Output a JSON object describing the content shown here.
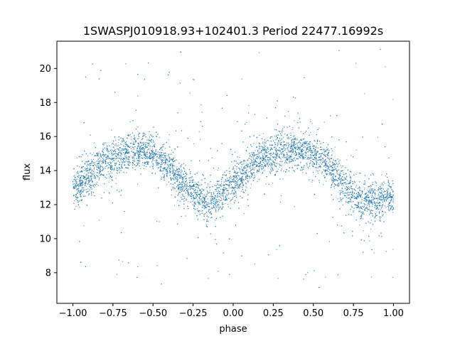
{
  "chart_data": {
    "type": "scatter",
    "title": "1SWASPJ010918.93+102401.3 Period 22477.16992s",
    "xlabel": "phase",
    "ylabel": "flux",
    "xlim": [
      -1.1,
      1.1
    ],
    "ylim": [
      6.2,
      21.6
    ],
    "x_ticks": [
      -1.0,
      -0.75,
      -0.5,
      -0.25,
      0.0,
      0.25,
      0.5,
      0.75,
      1.0
    ],
    "x_tick_labels": [
      "−1.00",
      "−0.75",
      "−0.50",
      "−0.25",
      "0.00",
      "0.25",
      "0.50",
      "0.75",
      "1.00"
    ],
    "y_ticks": [
      8,
      10,
      12,
      14,
      16,
      18,
      20
    ],
    "y_tick_labels": [
      "8",
      "10",
      "12",
      "14",
      "16",
      "18",
      "20"
    ],
    "grid": false,
    "point_color": "#1f77b4",
    "series": [
      {
        "x": [
          -1.0,
          -0.9,
          -0.8,
          -0.7,
          -0.6,
          -0.5,
          -0.4,
          -0.3,
          -0.2,
          -0.1,
          0.0,
          0.1,
          0.2,
          0.3,
          0.4,
          0.5,
          0.6,
          0.7,
          0.8,
          0.9,
          1.0
        ],
        "values": [
          12.9,
          13.7,
          14.5,
          15.0,
          15.2,
          15.0,
          14.3,
          13.1,
          12.2,
          12.3,
          13.2,
          14.1,
          14.8,
          15.2,
          15.3,
          15.0,
          14.2,
          13.0,
          12.2,
          12.2,
          12.5
        ]
      }
    ]
  }
}
